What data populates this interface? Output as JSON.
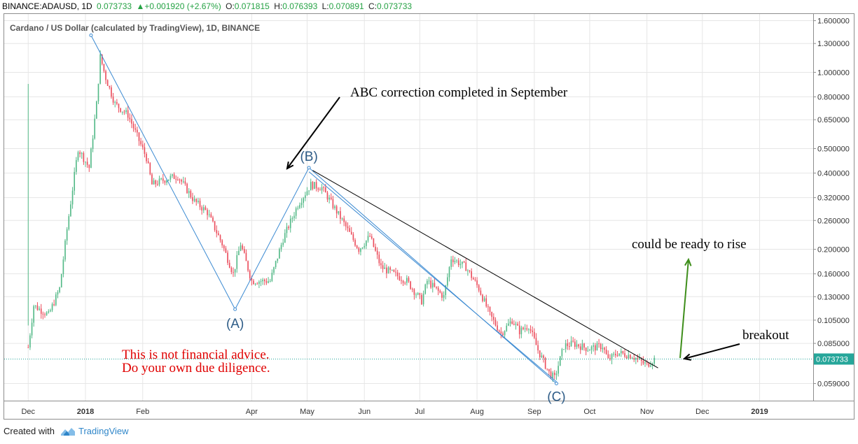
{
  "header": {
    "symbol": "BINANCE:ADAUSD, 1D",
    "last": "0.073733",
    "arrow": "▲",
    "change": "+0.001920 (+2.67%)",
    "o_label": "O:",
    "o_value": "0.071815",
    "h_label": "H:",
    "h_value": "0.076393",
    "l_label": "L:",
    "l_value": "0.070891",
    "c_label": "C:",
    "c_value": "0.073733"
  },
  "footer": {
    "created_with": "Created with",
    "brand": "TradingView"
  },
  "colors": {
    "up": "#53b987",
    "down": "#eb4d5c",
    "grid": "#e6e6e6",
    "trend": "#3b8ad2",
    "green_arrow": "#3e8e1b",
    "text_red": "#e00000",
    "price_tag": "#26a69a"
  },
  "chart_data": {
    "type": "candlestick",
    "title": "Cardano / US Dollar (calculated by TradingView), 1D, BINANCE",
    "scale": "log",
    "ylim": [
      0.0505,
      1.7
    ],
    "x_axis_labels": [
      "Dec",
      "2018",
      "Feb",
      "Apr",
      "May",
      "Jun",
      "Jul",
      "Aug",
      "Sep",
      "Oct",
      "Nov",
      "Dec",
      "2019"
    ],
    "y_axis_labels": [
      "1.600000",
      "1.300000",
      "1.000000",
      "0.800000",
      "0.650000",
      "0.500000",
      "0.400000",
      "0.320000",
      "0.260000",
      "0.200000",
      "0.160000",
      "0.130000",
      "0.105000",
      "0.085000",
      "0.059000"
    ],
    "y_axis_values": [
      1.6,
      1.3,
      1.0,
      0.8,
      0.65,
      0.5,
      0.4,
      0.32,
      0.26,
      0.2,
      0.16,
      0.13,
      0.105,
      0.085,
      0.059
    ],
    "last_price": {
      "label": "0.073733",
      "value": 0.073733
    },
    "anchors": [
      [
        "2017-12-01",
        0.082
      ],
      [
        "2017-12-04",
        0.12
      ],
      [
        "2017-12-12",
        0.11
      ],
      [
        "2017-12-18",
        0.14
      ],
      [
        "2017-12-22",
        0.24
      ],
      [
        "2017-12-28",
        0.5
      ],
      [
        "2018-01-03",
        0.42
      ],
      [
        "2018-01-07",
        0.75
      ],
      [
        "2018-01-09",
        1.15
      ],
      [
        "2018-01-12",
        0.95
      ],
      [
        "2018-01-17",
        0.75
      ],
      [
        "2018-01-24",
        0.68
      ],
      [
        "2018-02-03",
        0.46
      ],
      [
        "2018-02-06",
        0.36
      ],
      [
        "2018-02-14",
        0.38
      ],
      [
        "2018-02-20",
        0.39
      ],
      [
        "2018-03-01",
        0.31
      ],
      [
        "2018-03-08",
        0.28
      ],
      [
        "2018-03-16",
        0.21
      ],
      [
        "2018-03-22",
        0.16
      ],
      [
        "2018-03-26",
        0.21
      ],
      [
        "2018-04-01",
        0.15
      ],
      [
        "2018-04-11",
        0.15
      ],
      [
        "2018-04-18",
        0.22
      ],
      [
        "2018-04-26",
        0.3
      ],
      [
        "2018-05-03",
        0.36
      ],
      [
        "2018-05-09",
        0.35
      ],
      [
        "2018-05-20",
        0.26
      ],
      [
        "2018-05-29",
        0.2
      ],
      [
        "2018-06-04",
        0.225
      ],
      [
        "2018-06-10",
        0.17
      ],
      [
        "2018-06-24",
        0.15
      ],
      [
        "2018-07-02",
        0.125
      ],
      [
        "2018-07-05",
        0.15
      ],
      [
        "2018-07-14",
        0.13
      ],
      [
        "2018-07-18",
        0.185
      ],
      [
        "2018-07-26",
        0.17
      ],
      [
        "2018-08-02",
        0.14
      ],
      [
        "2018-08-08",
        0.11
      ],
      [
        "2018-08-14",
        0.093
      ],
      [
        "2018-08-20",
        0.105
      ],
      [
        "2018-08-24",
        0.095
      ],
      [
        "2018-08-29",
        0.1
      ],
      [
        "2018-09-03",
        0.08
      ],
      [
        "2018-09-09",
        0.065
      ],
      [
        "2018-09-12",
        0.062
      ],
      [
        "2018-09-17",
        0.083
      ],
      [
        "2018-09-22",
        0.085
      ],
      [
        "2018-09-30",
        0.081
      ],
      [
        "2018-10-08",
        0.083
      ],
      [
        "2018-10-11",
        0.073
      ],
      [
        "2018-10-16",
        0.078
      ],
      [
        "2018-10-24",
        0.076
      ],
      [
        "2018-10-30",
        0.071
      ],
      [
        "2018-11-01",
        0.07
      ],
      [
        "2018-11-05",
        0.0737
      ]
    ],
    "wave_points": [
      {
        "label": "",
        "date": "2018-01-04",
        "value": 1.4
      },
      {
        "label": "(A)",
        "date": "2018-03-23",
        "value": 0.116
      },
      {
        "label": "(B)",
        "date": "2018-05-02",
        "value": 0.42
      },
      {
        "label": "(C)",
        "date": "2018-09-13",
        "value": 0.059
      }
    ],
    "parallel_line": {
      "from": [
        "2018-05-02",
        0.405
      ],
      "to": [
        "2018-09-13",
        0.06
      ]
    },
    "trendline": {
      "from": [
        "2018-05-04",
        0.41
      ],
      "to": [
        "2018-11-07",
        0.068
      ]
    },
    "annotations": [
      {
        "text": "ABC correction completed in September",
        "date": "2018-04-28",
        "value": 0.85
      },
      {
        "text": "could be ready to rise",
        "date": "2018-10-22",
        "value": 0.205
      },
      {
        "text": "breakout",
        "date": "2018-11-22",
        "value": 0.088
      }
    ],
    "disclaimer": [
      "This is not financial advice.",
      "Do your own due diligence."
    ]
  }
}
